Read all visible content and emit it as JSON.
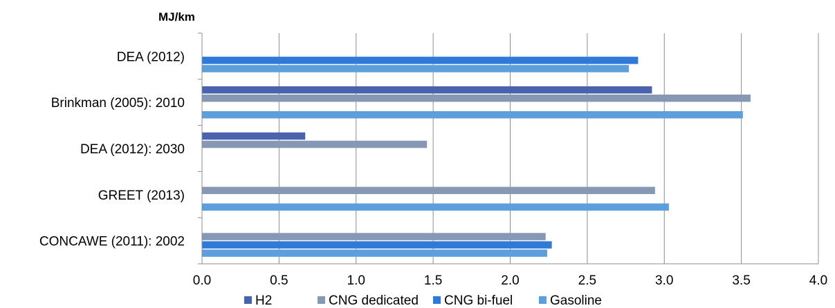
{
  "chart_data": {
    "type": "bar",
    "orientation": "horizontal",
    "unit_label": "MJ/km",
    "categories": [
      "DEA (2012)",
      "Brinkman (2005): 2010",
      "DEA (2012): 2030",
      "GREET (2013)",
      "CONCAWE (2011): 2002"
    ],
    "series": [
      {
        "name": "H2",
        "color": "#4a63ad",
        "values": [
          null,
          2.92,
          0.67,
          null,
          null
        ]
      },
      {
        "name": "CNG dedicated",
        "color": "#8798b4",
        "values": [
          null,
          3.56,
          1.46,
          2.94,
          2.23
        ]
      },
      {
        "name": "CNG bi-fuel",
        "color": "#2f7ad8",
        "values": [
          2.83,
          null,
          null,
          null,
          2.27
        ]
      },
      {
        "name": "Gasoline",
        "color": "#5c9fdc",
        "values": [
          2.77,
          3.51,
          null,
          3.03,
          2.24
        ]
      }
    ],
    "xlim": [
      0,
      4
    ],
    "xticks": [
      "0.0",
      "0.5",
      "1.0",
      "1.5",
      "2.0",
      "2.5",
      "3.0",
      "3.5",
      "4.0"
    ],
    "grid": true,
    "legend": "bottom"
  }
}
